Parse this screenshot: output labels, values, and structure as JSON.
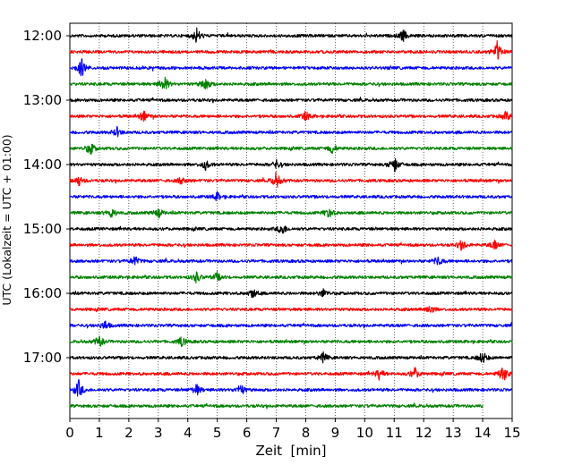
{
  "chart_data": {
    "type": "line",
    "chart_kind": "helicorder seismogram",
    "title": "",
    "xlabel": "Zeit  [min]",
    "ylabel": "UTC (Lokalzeit = UTC + 01:00)",
    "xlim": [
      0,
      15
    ],
    "x_ticks": [
      "0",
      "1",
      "2",
      "3",
      "4",
      "5",
      "6",
      "7",
      "8",
      "9",
      "10",
      "11",
      "12",
      "13",
      "14",
      "15"
    ],
    "y_tick_labels": [
      "12:00",
      "13:00",
      "14:00",
      "15:00",
      "16:00",
      "17:00"
    ],
    "minutes_per_line": 15,
    "start_time": "12:00",
    "grid": "vertical dotted lines at every minute",
    "trace_colors": [
      "#000000",
      "#ff0000",
      "#0000ff",
      "#008000"
    ],
    "traces": [
      {
        "start": "12:00",
        "color": "#000000",
        "events": [
          {
            "minute": 4.3,
            "amp": 0.5
          },
          {
            "minute": 11.3,
            "amp": 0.35
          }
        ]
      },
      {
        "start": "12:15",
        "color": "#ff0000",
        "events": [
          {
            "minute": 14.5,
            "amp": 0.7
          }
        ]
      },
      {
        "start": "12:30",
        "color": "#0000ff",
        "events": [
          {
            "minute": 0.4,
            "amp": 0.6
          }
        ]
      },
      {
        "start": "12:45",
        "color": "#008000",
        "events": [
          {
            "minute": 3.2,
            "amp": 0.5
          },
          {
            "minute": 4.6,
            "amp": 0.45
          }
        ]
      },
      {
        "start": "13:00",
        "color": "#000000",
        "events": []
      },
      {
        "start": "13:15",
        "color": "#ff0000",
        "events": [
          {
            "minute": 2.5,
            "amp": 0.35
          },
          {
            "minute": 8.0,
            "amp": 0.3
          },
          {
            "minute": 14.8,
            "amp": 0.3
          }
        ]
      },
      {
        "start": "13:30",
        "color": "#0000ff",
        "events": [
          {
            "minute": 1.6,
            "amp": 0.3
          }
        ]
      },
      {
        "start": "13:45",
        "color": "#008000",
        "events": [
          {
            "minute": 0.7,
            "amp": 0.4
          },
          {
            "minute": 8.9,
            "amp": 0.3
          }
        ]
      },
      {
        "start": "14:00",
        "color": "#000000",
        "events": [
          {
            "minute": 11.0,
            "amp": 0.55
          },
          {
            "minute": 4.6,
            "amp": 0.3
          },
          {
            "minute": 7.0,
            "amp": 0.25
          }
        ]
      },
      {
        "start": "14:15",
        "color": "#ff0000",
        "events": [
          {
            "minute": 7.0,
            "amp": 0.5
          },
          {
            "minute": 0.3,
            "amp": 0.3
          },
          {
            "minute": 3.8,
            "amp": 0.25
          }
        ]
      },
      {
        "start": "14:30",
        "color": "#0000ff",
        "events": [
          {
            "minute": 5.0,
            "amp": 0.25
          }
        ]
      },
      {
        "start": "14:45",
        "color": "#008000",
        "events": [
          {
            "minute": 1.4,
            "amp": 0.35
          },
          {
            "minute": 3.0,
            "amp": 0.3
          },
          {
            "minute": 8.8,
            "amp": 0.35
          }
        ]
      },
      {
        "start": "15:00",
        "color": "#000000",
        "events": [
          {
            "minute": 7.2,
            "amp": 0.4
          }
        ]
      },
      {
        "start": "15:15",
        "color": "#ff0000",
        "events": [
          {
            "minute": 13.3,
            "amp": 0.35
          },
          {
            "minute": 14.4,
            "amp": 0.3
          }
        ]
      },
      {
        "start": "15:30",
        "color": "#0000ff",
        "events": [
          {
            "minute": 2.2,
            "amp": 0.3
          },
          {
            "minute": 12.5,
            "amp": 0.3
          }
        ]
      },
      {
        "start": "15:45",
        "color": "#008000",
        "events": [
          {
            "minute": 4.3,
            "amp": 0.35
          },
          {
            "minute": 5.0,
            "amp": 0.3
          }
        ]
      },
      {
        "start": "16:00",
        "color": "#000000",
        "events": [
          {
            "minute": 6.2,
            "amp": 0.3
          },
          {
            "minute": 8.6,
            "amp": 0.25
          }
        ]
      },
      {
        "start": "16:15",
        "color": "#ff0000",
        "events": [
          {
            "minute": 12.2,
            "amp": 0.3
          }
        ]
      },
      {
        "start": "16:30",
        "color": "#0000ff",
        "events": [
          {
            "minute": 1.2,
            "amp": 0.3
          }
        ]
      },
      {
        "start": "16:45",
        "color": "#008000",
        "events": [
          {
            "minute": 1.0,
            "amp": 0.35
          },
          {
            "minute": 3.8,
            "amp": 0.3
          }
        ]
      },
      {
        "start": "17:00",
        "color": "#000000",
        "events": [
          {
            "minute": 8.6,
            "amp": 0.3
          },
          {
            "minute": 14.0,
            "amp": 0.4
          }
        ]
      },
      {
        "start": "17:15",
        "color": "#ff0000",
        "events": [
          {
            "minute": 14.7,
            "amp": 0.55
          },
          {
            "minute": 10.5,
            "amp": 0.35
          },
          {
            "minute": 11.7,
            "amp": 0.35
          }
        ]
      },
      {
        "start": "17:30",
        "color": "#0000ff",
        "events": [
          {
            "minute": 0.3,
            "amp": 0.6
          },
          {
            "minute": 4.3,
            "amp": 0.35
          },
          {
            "minute": 5.8,
            "amp": 0.35
          }
        ]
      },
      {
        "start": "17:45",
        "color": "#008000",
        "end_minute": 14.0,
        "events": []
      }
    ]
  }
}
